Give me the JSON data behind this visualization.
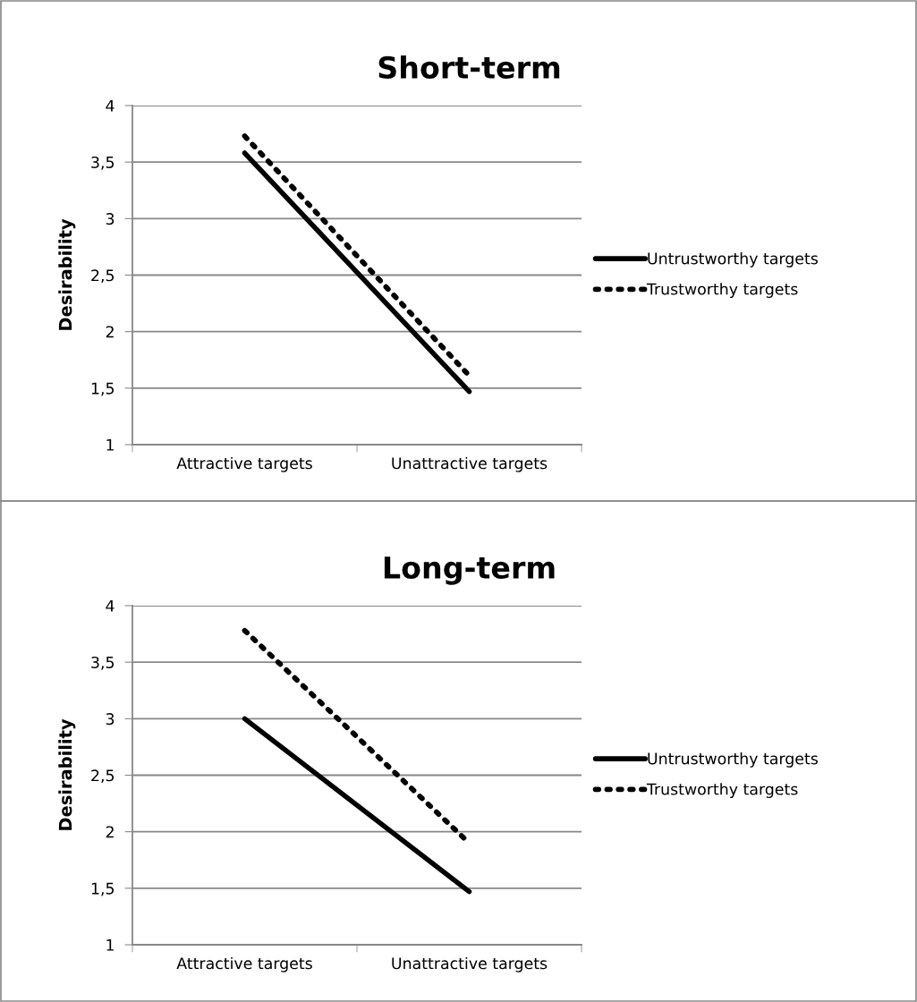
{
  "chart_data": [
    {
      "type": "line",
      "title": "Short-term",
      "ylabel": "Desirability",
      "categories": [
        "Attractive targets",
        "Unattractive targets"
      ],
      "ylim": [
        1,
        4
      ],
      "yticks": [
        1,
        {
          "value": 1.5,
          "label": "1,5"
        },
        2,
        {
          "value": 2.5,
          "label": "2,5"
        },
        3,
        {
          "value": 3.5,
          "label": "3,5"
        },
        4
      ],
      "grid": "y",
      "legend": "right",
      "marker": "none",
      "series": [
        {
          "name": "Untrustworthy targets",
          "color": "#000000",
          "line_style": "solid",
          "values": [
            3.58,
            1.47
          ]
        },
        {
          "name": "Trustworthy targets",
          "color": "#000000",
          "line_style": "dotted",
          "values": [
            3.73,
            1.61
          ]
        }
      ]
    },
    {
      "type": "line",
      "title": "Long-term",
      "ylabel": "Desirability",
      "categories": [
        "Attractive targets",
        "Unattractive targets"
      ],
      "ylim": [
        1,
        4
      ],
      "yticks": [
        1,
        {
          "value": 1.5,
          "label": "1,5"
        },
        2,
        {
          "value": 2.5,
          "label": "2,5"
        },
        3,
        {
          "value": 3.5,
          "label": "3,5"
        },
        4
      ],
      "grid": "y",
      "legend": "right",
      "marker": "none",
      "series": [
        {
          "name": "Untrustworthy targets",
          "color": "#000000",
          "line_style": "solid",
          "values": [
            3.0,
            1.47
          ]
        },
        {
          "name": "Trustworthy targets",
          "color": "#000000",
          "line_style": "dotted",
          "values": [
            3.78,
            1.9
          ]
        }
      ]
    }
  ]
}
